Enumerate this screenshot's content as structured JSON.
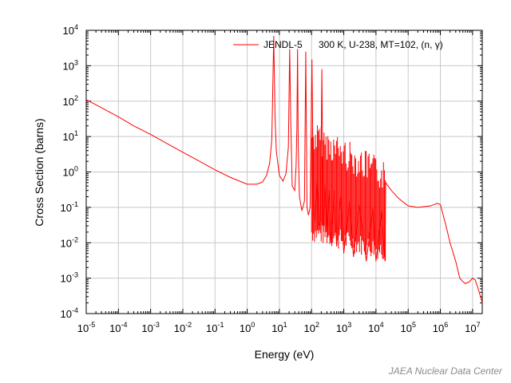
{
  "chart_data": {
    "type": "line",
    "x_scale": "log",
    "y_scale": "log",
    "xlabel": "Energy (eV)",
    "ylabel": "Cross Section (barns)",
    "xlim": [
      1e-05,
      20000000.0
    ],
    "ylim": [
      0.0001,
      10000.0
    ],
    "x_ticks": [
      {
        "base": "10",
        "exp": "-5"
      },
      {
        "base": "10",
        "exp": "-4"
      },
      {
        "base": "10",
        "exp": "-3"
      },
      {
        "base": "10",
        "exp": "-2"
      },
      {
        "base": "10",
        "exp": "-1"
      },
      {
        "base": "10",
        "exp": "0"
      },
      {
        "base": "10",
        "exp": "1"
      },
      {
        "base": "10",
        "exp": "2"
      },
      {
        "base": "10",
        "exp": "3"
      },
      {
        "base": "10",
        "exp": "4"
      },
      {
        "base": "10",
        "exp": "5"
      },
      {
        "base": "10",
        "exp": "6"
      },
      {
        "base": "10",
        "exp": "7"
      }
    ],
    "y_ticks": [
      {
        "base": "10",
        "exp": "-4"
      },
      {
        "base": "10",
        "exp": "-3"
      },
      {
        "base": "10",
        "exp": "-2"
      },
      {
        "base": "10",
        "exp": "-1"
      },
      {
        "base": "10",
        "exp": "0"
      },
      {
        "base": "10",
        "exp": "1"
      },
      {
        "base": "10",
        "exp": "2"
      },
      {
        "base": "10",
        "exp": "3"
      },
      {
        "base": "10",
        "exp": "4"
      }
    ],
    "grid": true,
    "legend_position": "top-right",
    "series": [
      {
        "name": "JENDL-5",
        "label_detail": "300 K, U-238, MT=102, (n, γ)",
        "color": "#ff0000",
        "x": [
          1e-05,
          3e-05,
          0.0001,
          0.0003,
          0.001,
          0.003,
          0.01,
          0.03,
          0.1,
          0.3,
          1.0,
          2.0,
          3.0,
          4.0,
          5.0,
          5.8,
          6.1,
          6.4,
          6.674,
          6.95,
          7.3,
          8.0,
          10.0,
          13.0,
          16.0,
          19.0,
          20.87,
          22.5,
          25.0,
          30.0,
          33.0,
          35.0,
          36.68,
          38.5,
          42.0,
          50.0,
          60.0,
          66.03,
          72.0,
          80.0,
          90.0,
          102.56,
          115.0,
          130.0,
          150.0,
          170.0,
          190.0,
          208.5,
          230.0,
          260.0,
          300.0,
          350.0,
          400.0,
          500.0,
          600.0,
          800.0,
          1000.0,
          1500.0,
          2000.0,
          3000.0,
          5000.0,
          8000.0,
          10000.0,
          15000.0,
          19000.0,
          20000.0,
          30000.0,
          50000.0,
          100000.0,
          200000.0,
          500000.0,
          800000.0,
          1000000.0,
          1500000.0,
          2000000.0,
          3000000.0,
          4000000.0,
          5000000.0,
          6000000.0,
          8000000.0,
          10000000.0,
          12000000.0,
          15000000.0,
          20000000.0
        ],
        "y": [
          110,
          65,
          36,
          20,
          11.5,
          6.6,
          3.6,
          2.1,
          1.15,
          0.7,
          0.45,
          0.45,
          0.52,
          0.8,
          1.8,
          8.0,
          80.0,
          900.0,
          7000.0,
          700.0,
          40.0,
          4.0,
          0.8,
          0.55,
          0.9,
          5.0,
          3000.0,
          30.0,
          0.4,
          0.3,
          1.5,
          20.0,
          3000.0,
          5.0,
          0.2,
          0.08,
          0.15,
          2500.0,
          0.1,
          0.06,
          0.1,
          1500.0,
          0.08,
          0.04,
          0.5,
          0.03,
          0.04,
          800.0,
          0.02,
          0.5,
          0.02,
          0.3,
          0.01,
          0.3,
          0.008,
          0.2,
          0.005,
          0.15,
          0.004,
          0.12,
          0.003,
          0.1,
          0.003,
          0.08,
          0.003,
          0.5,
          0.3,
          0.18,
          0.11,
          0.1,
          0.11,
          0.13,
          0.12,
          0.03,
          0.01,
          0.003,
          0.001,
          0.0008,
          0.0007,
          0.0008,
          0.001,
          0.0009,
          0.0005,
          0.0002
        ]
      }
    ],
    "dense_resonance_band": {
      "x_min": 100,
      "x_max": 20000,
      "y_low_start": 0.01,
      "y_low_end": 0.003,
      "y_high_start": 30,
      "y_high_end": 2
    }
  },
  "credit": "JAEA Nuclear Data Center",
  "colors": {
    "curve": "#ff0000",
    "grid": "#c8c8c8",
    "axis": "#000000",
    "credit": "#8a8a8a"
  }
}
